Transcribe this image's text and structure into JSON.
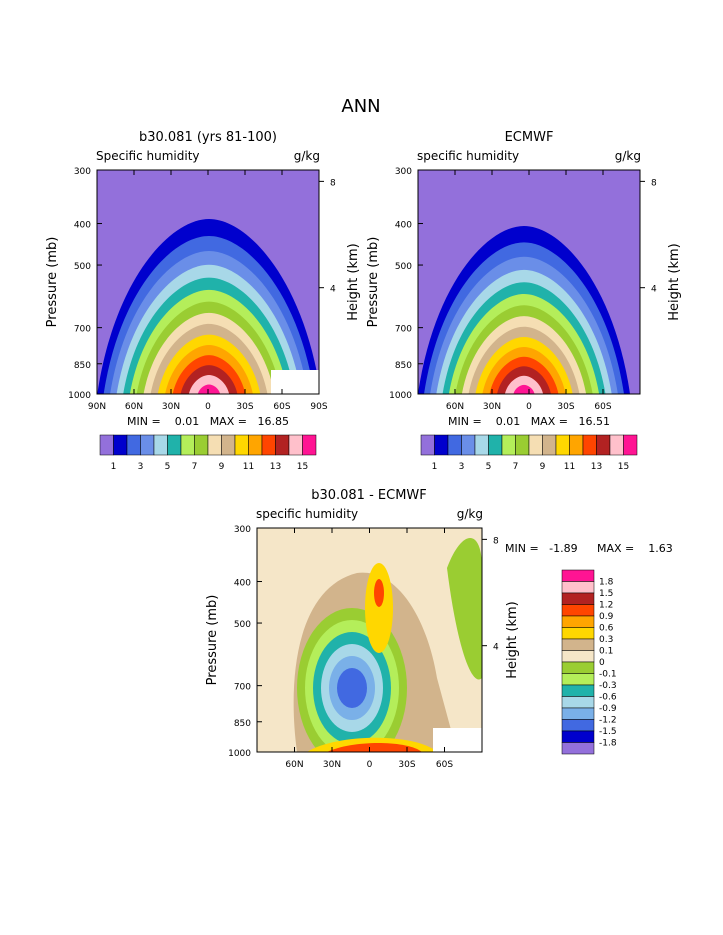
{
  "figure": {
    "title": "ANN"
  },
  "colors": {
    "full_scale": [
      "#9370db",
      "#0000cd",
      "#4169e1",
      "#6a8ee8",
      "#a8d8e8",
      "#20b2aa",
      "#b4ee5a",
      "#9acd32",
      "#f5deb3",
      "#d2b48c",
      "#ffd700",
      "#ffa500",
      "#ff4500",
      "#b22222",
      "#ffc0cb",
      "#ff1493"
    ],
    "diff_scale": [
      "#9370db",
      "#0000cd",
      "#4169e1",
      "#7ab0e8",
      "#a8d8e8",
      "#20b2aa",
      "#b4ee5a",
      "#9acd32",
      "#f5e6c8",
      "#d2b48c",
      "#ffd700",
      "#ffa500",
      "#ff4500",
      "#b22222",
      "#ffc0cb",
      "#ff1493"
    ]
  },
  "chart_data": [
    {
      "type": "contour",
      "title": "b30.081 (yrs 81-100)",
      "subtitle_left": "Specific humidity",
      "subtitle_right": "g/kg",
      "ylabel": "Pressure (mb)",
      "ylabel_right": "Height (km)",
      "y_ticks": [
        "300",
        "400",
        "500",
        "700",
        "850",
        "1000"
      ],
      "y_right_ticks": [
        "8",
        "4"
      ],
      "x_ticks": [
        "90N",
        "60N",
        "30N",
        "0",
        "30S",
        "60S",
        "90S"
      ],
      "stats": "MIN =    0.01   MAX =   16.85",
      "colorbar_labels": [
        "1",
        "3",
        "5",
        "7",
        "9",
        "11",
        "13",
        "15"
      ],
      "peak_value": 16.85,
      "min_value": 0.01
    },
    {
      "type": "contour",
      "title": "ECMWF",
      "subtitle_left": "specific humidity",
      "subtitle_right": "g/kg",
      "ylabel": "Pressure (mb)",
      "ylabel_right": "Height (km)",
      "y_ticks": [
        "300",
        "400",
        "500",
        "700",
        "850",
        "1000"
      ],
      "y_right_ticks": [
        "8",
        "4"
      ],
      "x_ticks": [
        "60N",
        "30N",
        "0",
        "30S",
        "60S"
      ],
      "stats": "MIN =    0.01   MAX =   16.51",
      "colorbar_labels": [
        "1",
        "3",
        "5",
        "7",
        "9",
        "11",
        "13",
        "15"
      ],
      "peak_value": 16.51,
      "min_value": 0.01
    },
    {
      "type": "contour",
      "title": "b30.081 - ECMWF",
      "subtitle_left": "specific humidity",
      "subtitle_right": "g/kg",
      "ylabel": "Pressure (mb)",
      "ylabel_right": "Height (km)",
      "y_ticks": [
        "300",
        "400",
        "500",
        "700",
        "850",
        "1000"
      ],
      "y_right_ticks": [
        "8",
        "4"
      ],
      "x_ticks": [
        "60N",
        "30N",
        "0",
        "30S",
        "60S"
      ],
      "stats_min": "MIN =   -1.89",
      "stats_max": "MAX =    1.63",
      "legend_labels": [
        "1.8",
        "1.5",
        "1.2",
        "0.9",
        "0.6",
        "0.3",
        "0.1",
        "0",
        "-0.1",
        "-0.3",
        "-0.6",
        "-0.9",
        "-1.2",
        "-1.5",
        "-1.8"
      ],
      "min_value": -1.89,
      "max_value": 1.63
    }
  ]
}
